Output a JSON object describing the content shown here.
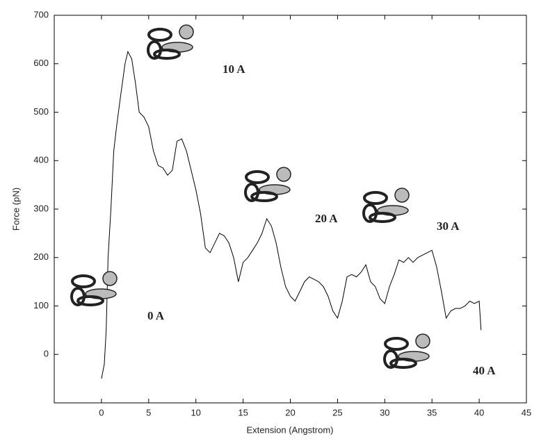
{
  "chart_data": {
    "type": "line",
    "xlabel": "Extension (Angstrom)",
    "ylabel": "Force (pN)",
    "x": [
      0,
      0.3,
      0.5,
      0.7,
      1,
      1.3,
      1.6,
      2,
      2.5,
      2.8,
      3.2,
      3.6,
      4,
      4.5,
      5,
      5.5,
      6,
      6.5,
      7,
      7.5,
      8,
      8.5,
      9,
      9.5,
      10,
      10.5,
      11,
      11.5,
      12,
      12.5,
      13,
      13.5,
      14,
      14.5,
      15,
      15.5,
      16,
      16.5,
      17,
      17.5,
      18,
      18.5,
      19,
      19.5,
      20,
      20.5,
      21,
      21.5,
      22,
      22.5,
      23,
      23.5,
      24,
      24.5,
      25,
      25.5,
      26,
      26.5,
      27,
      27.5,
      28,
      28.5,
      29,
      29.5,
      30,
      30.5,
      31,
      31.5,
      32,
      32.5,
      33,
      33.5,
      34,
      34.5,
      35,
      35.5,
      36,
      36.5,
      37,
      37.5,
      38,
      38.5,
      39,
      39.5,
      40,
      40.2
    ],
    "values": [
      -50,
      -20,
      50,
      200,
      300,
      420,
      470,
      530,
      600,
      625,
      610,
      560,
      500,
      490,
      470,
      420,
      390,
      385,
      370,
      380,
      440,
      445,
      420,
      380,
      340,
      290,
      220,
      210,
      230,
      250,
      245,
      230,
      200,
      150,
      190,
      200,
      215,
      230,
      250,
      280,
      265,
      230,
      180,
      140,
      120,
      110,
      130,
      150,
      160,
      155,
      150,
      140,
      120,
      90,
      75,
      110,
      160,
      165,
      160,
      170,
      185,
      150,
      140,
      115,
      105,
      140,
      165,
      195,
      190,
      200,
      190,
      200,
      205,
      210,
      215,
      180,
      130,
      75,
      90,
      95,
      95,
      100,
      110,
      105,
      110,
      50
    ],
    "color": "#000000",
    "xlim": [
      -5,
      45
    ],
    "xticks": [
      0,
      5,
      10,
      15,
      20,
      25,
      30,
      35,
      40,
      45
    ],
    "ylim": [
      -100,
      700
    ],
    "yticks": [
      0,
      100,
      200,
      300,
      400,
      500,
      600,
      700
    ],
    "annotations": [
      "0 A",
      "10 A",
      "20 A",
      "30 A",
      "40 A"
    ]
  }
}
